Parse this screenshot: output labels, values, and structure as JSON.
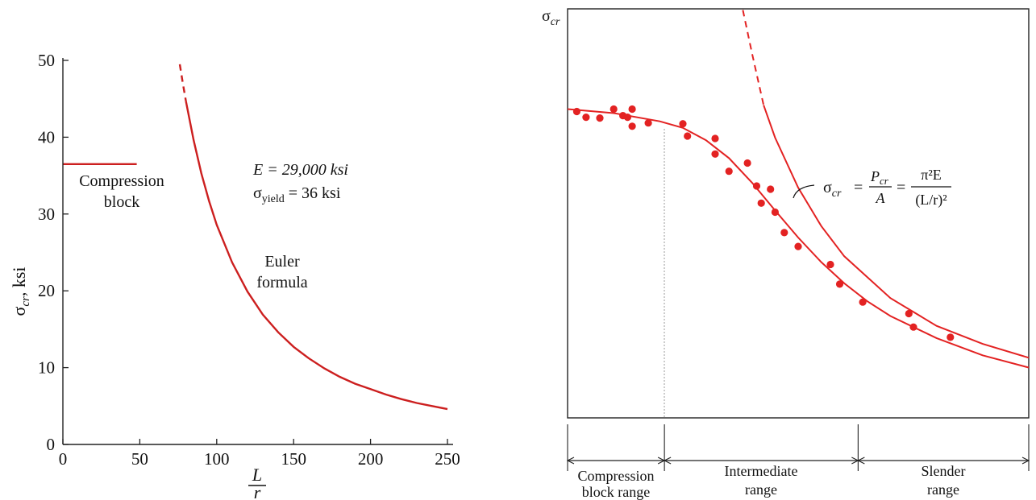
{
  "chart_data": [
    {
      "type": "line",
      "xlabel_num": "L",
      "xlabel_den": "r",
      "ylabel_main": "σ",
      "ylabel_sub": "cr",
      "ylabel_unit": ", ksi",
      "xlim": [
        0,
        250
      ],
      "ylim": [
        0,
        50
      ],
      "x_ticks": [
        0,
        50,
        100,
        150,
        200,
        250
      ],
      "y_ticks": [
        0,
        10,
        20,
        30,
        40,
        50
      ],
      "grid": false,
      "color": "#cc1f1f",
      "series": [
        {
          "name": "Compression block",
          "x": [
            0,
            48
          ],
          "y": [
            36.5,
            36.5
          ]
        },
        {
          "name": "Euler formula",
          "x": [
            80,
            85,
            90,
            95,
            100,
            110,
            120,
            130,
            140,
            150,
            160,
            170,
            180,
            190,
            200,
            210,
            220,
            230,
            240,
            250
          ],
          "y": [
            44.7,
            39.6,
            35.3,
            31.7,
            28.6,
            23.7,
            19.9,
            16.9,
            14.6,
            12.7,
            11.2,
            9.9,
            8.8,
            7.9,
            7.2,
            6.5,
            5.9,
            5.4,
            5.0,
            4.6
          ]
        },
        {
          "name": "Euler dashed",
          "x": [
            76,
            78,
            80
          ],
          "y": [
            49.5,
            47.0,
            44.7
          ]
        }
      ],
      "labels": {
        "compression_block_1": "Compression",
        "compression_block_2": "block",
        "euler_1": "Euler",
        "euler_2": "formula",
        "e_text": "E = 29,000 ksi",
        "yield_main": "σ",
        "yield_sub": "yield",
        "yield_rest": " = 36 ksi"
      }
    },
    {
      "type": "scatter",
      "ylabel_main": "σ",
      "ylabel_sub": "cr",
      "grid": false,
      "color": "#e32222",
      "points": [
        [
          0.02,
          0.749
        ],
        [
          0.04,
          0.735
        ],
        [
          0.07,
          0.733
        ],
        [
          0.1,
          0.755
        ],
        [
          0.12,
          0.739
        ],
        [
          0.13,
          0.735
        ],
        [
          0.14,
          0.755
        ],
        [
          0.14,
          0.713
        ],
        [
          0.175,
          0.721
        ],
        [
          0.25,
          0.719
        ],
        [
          0.26,
          0.689
        ],
        [
          0.32,
          0.683
        ],
        [
          0.32,
          0.645
        ],
        [
          0.35,
          0.603
        ],
        [
          0.39,
          0.623
        ],
        [
          0.41,
          0.567
        ],
        [
          0.42,
          0.525
        ],
        [
          0.44,
          0.559
        ],
        [
          0.45,
          0.503
        ],
        [
          0.47,
          0.453
        ],
        [
          0.5,
          0.419
        ],
        [
          0.57,
          0.375
        ],
        [
          0.59,
          0.327
        ],
        [
          0.64,
          0.283
        ],
        [
          0.74,
          0.255
        ],
        [
          0.75,
          0.222
        ],
        [
          0.83,
          0.197
        ]
      ],
      "inelastic_curve": [
        [
          0.0,
          0.755
        ],
        [
          0.1,
          0.745
        ],
        [
          0.2,
          0.725
        ],
        [
          0.25,
          0.709
        ],
        [
          0.3,
          0.679
        ],
        [
          0.35,
          0.635
        ],
        [
          0.4,
          0.575
        ],
        [
          0.45,
          0.507
        ],
        [
          0.5,
          0.441
        ],
        [
          0.55,
          0.381
        ],
        [
          0.6,
          0.329
        ],
        [
          0.65,
          0.285
        ],
        [
          0.7,
          0.249
        ],
        [
          0.8,
          0.195
        ],
        [
          0.9,
          0.153
        ],
        [
          1.0,
          0.123
        ]
      ],
      "euler_curve": [
        [
          0.425,
          0.765
        ],
        [
          0.45,
          0.685
        ],
        [
          0.5,
          0.563
        ],
        [
          0.55,
          0.469
        ],
        [
          0.6,
          0.395
        ],
        [
          0.7,
          0.293
        ],
        [
          0.8,
          0.225
        ],
        [
          0.9,
          0.181
        ],
        [
          1.0,
          0.147
        ]
      ],
      "euler_dashed": [
        [
          0.38,
          0.997
        ],
        [
          0.4,
          0.891
        ],
        [
          0.425,
          0.765
        ]
      ],
      "formula": {
        "sigma": "σ",
        "sub": "cr",
        "eq1": "=",
        "num1": "P",
        "num1_sub": "cr",
        "den1": "A",
        "eq2": "=",
        "num2": "π²E",
        "den2": "(L/r)²"
      },
      "ranges": [
        {
          "line1": "Compression",
          "line2": "block range"
        },
        {
          "line1": "Intermediate",
          "line2": "range"
        },
        {
          "line1": "Slender",
          "line2": "range"
        }
      ],
      "range_bounds": [
        0.0,
        0.21,
        0.63,
        1.0
      ]
    }
  ]
}
